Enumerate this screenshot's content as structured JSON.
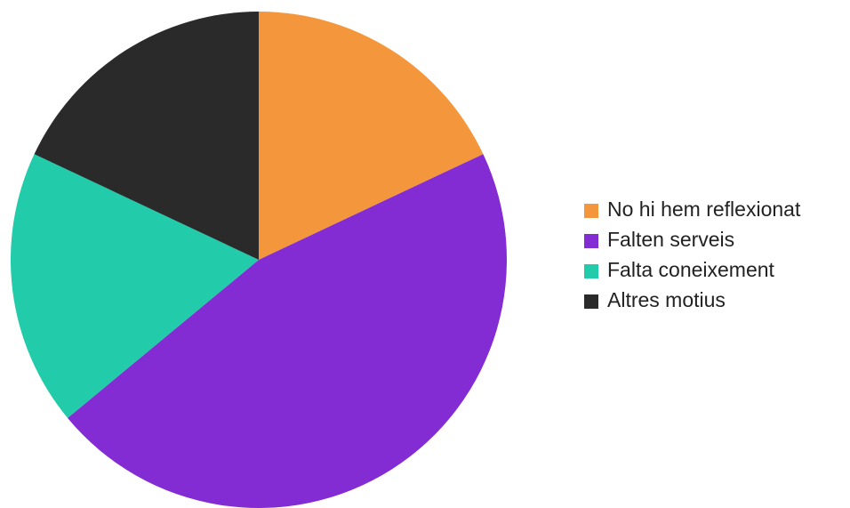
{
  "chart_data": {
    "type": "pie",
    "categories": [
      "No hi hem reflexionat",
      "Falten serveis",
      "Falta coneixement",
      "Altres motius"
    ],
    "values": [
      18,
      46,
      18,
      18
    ],
    "colors": [
      "#f4973c",
      "#832cd3",
      "#22cbaa",
      "#2a2a2a"
    ],
    "start_angle": 0,
    "direction": "clockwise",
    "legend": "right"
  }
}
